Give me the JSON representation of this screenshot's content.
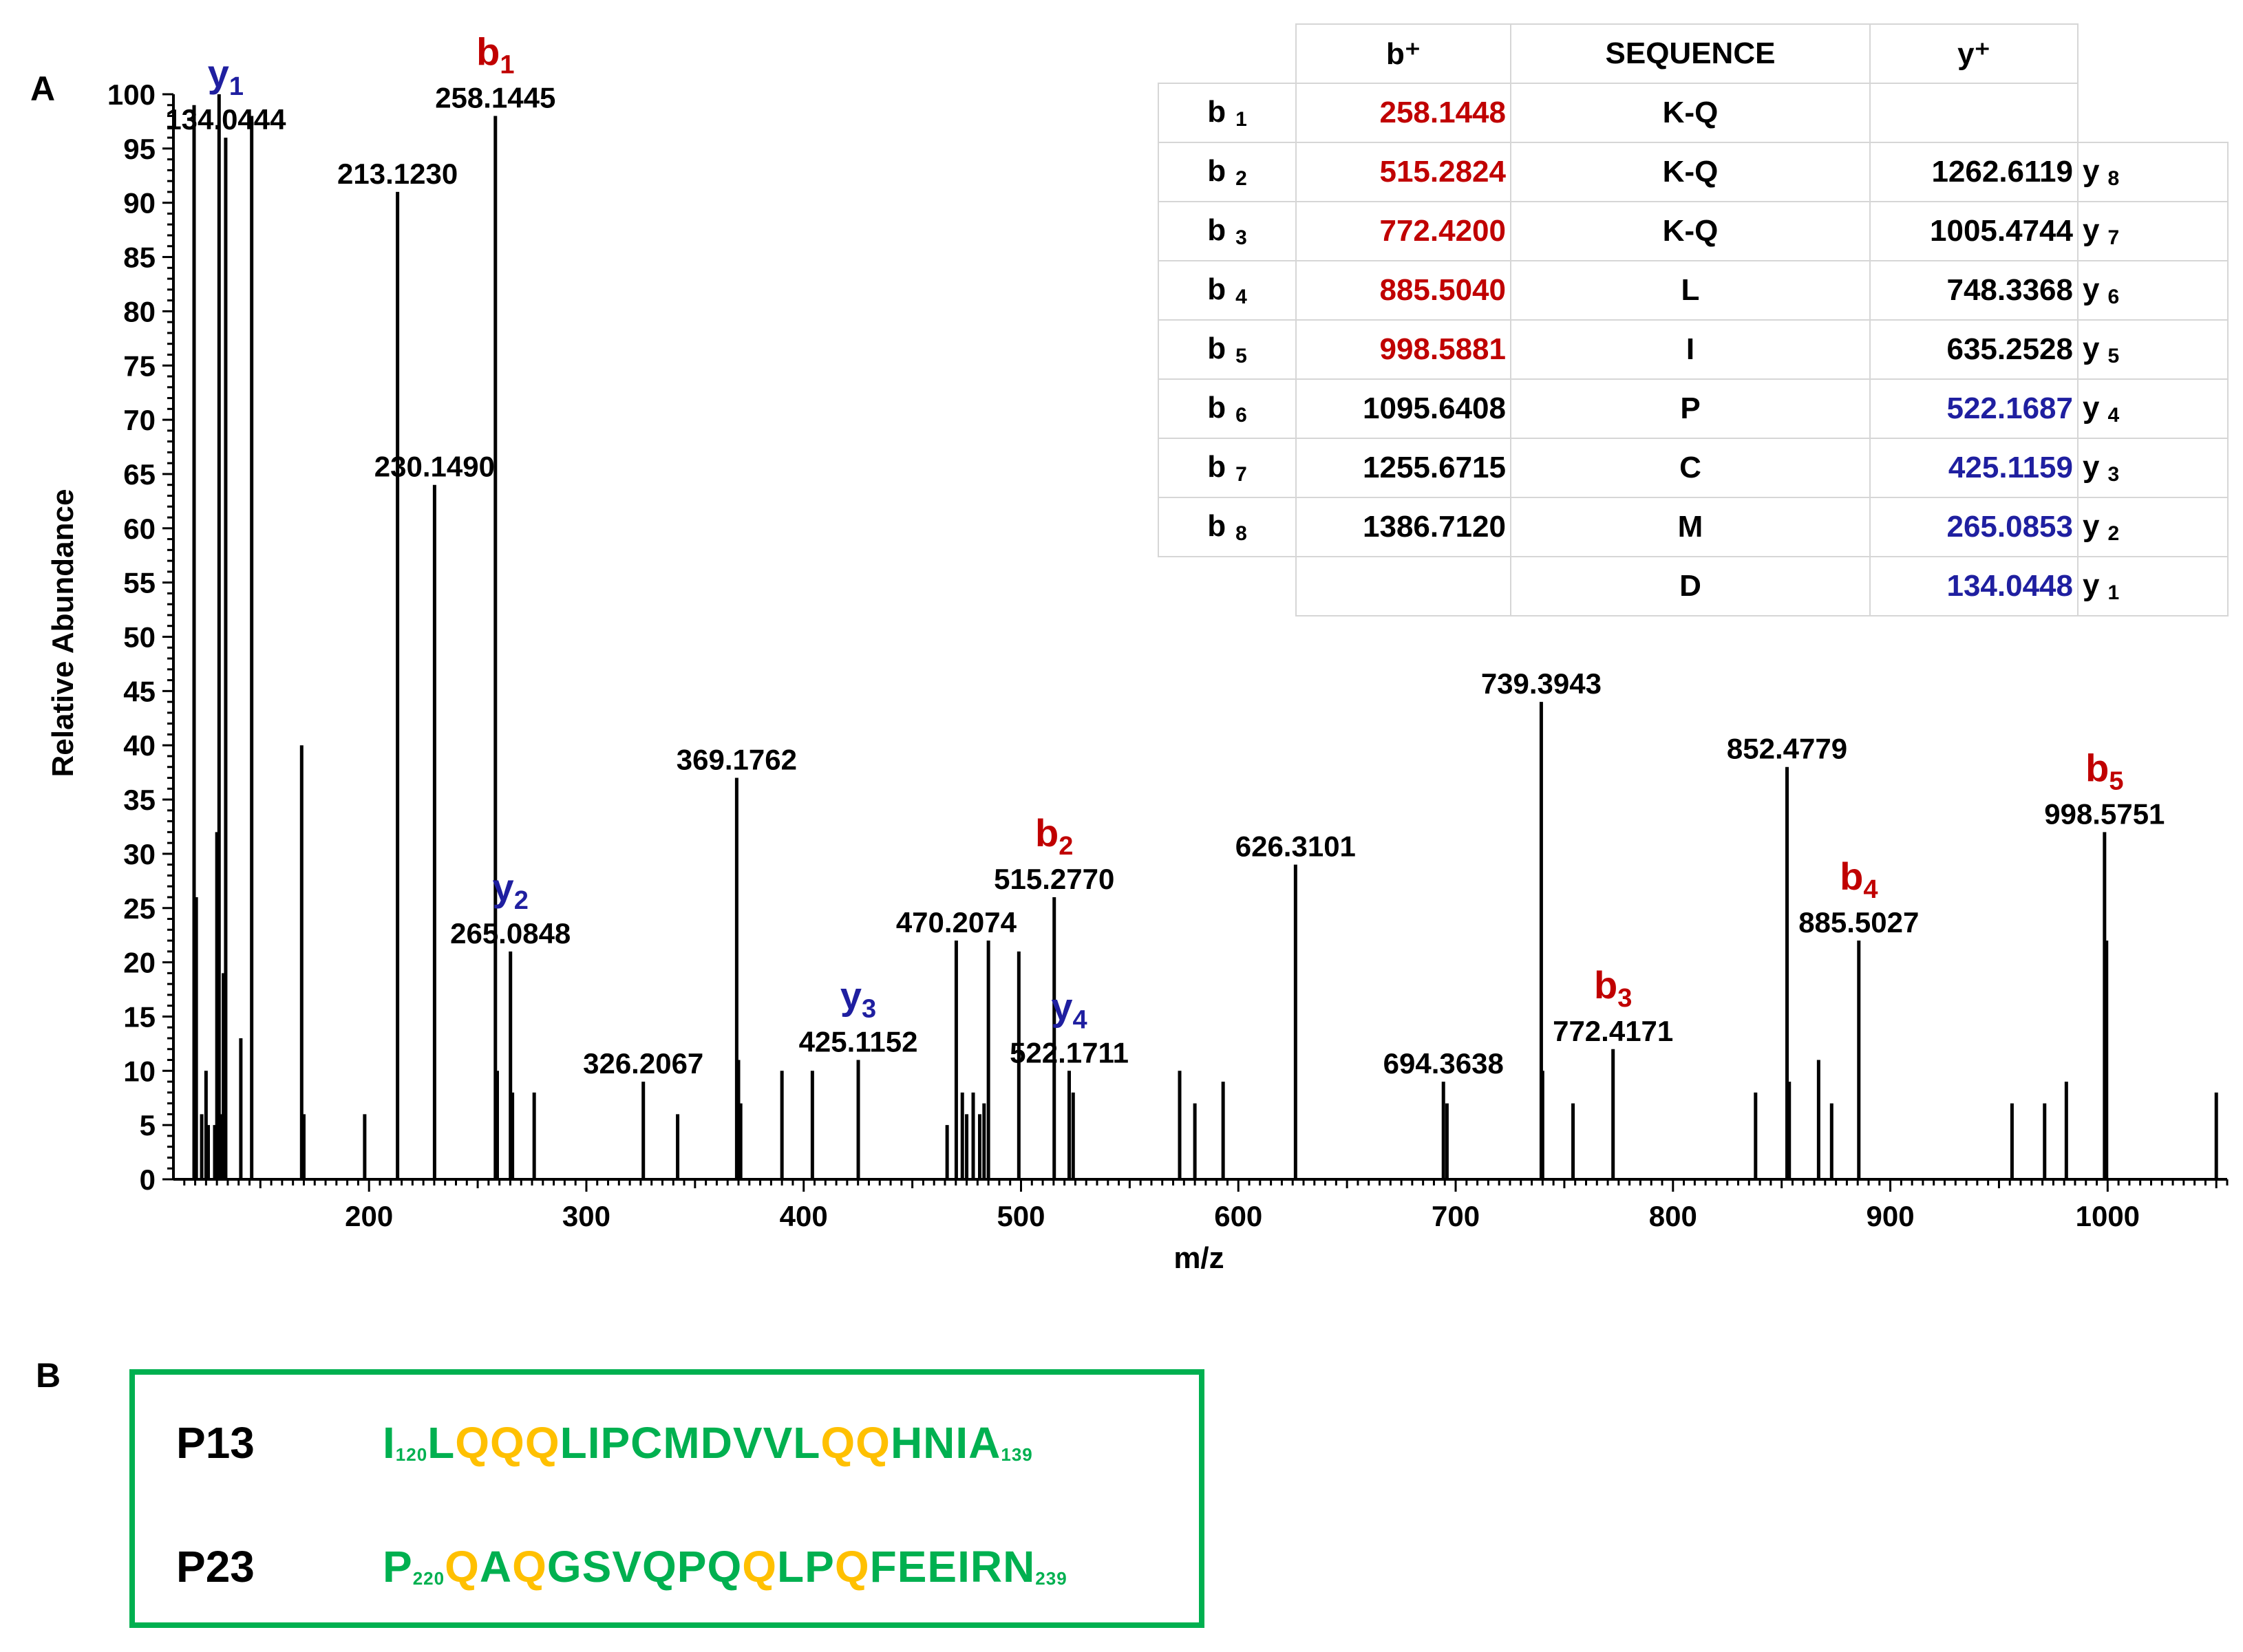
{
  "panel_a_label": "A",
  "panel_b_label": "B",
  "chart_data": {
    "type": "bar",
    "title": "",
    "xlabel": "m/z",
    "ylabel": "Relative Abundance",
    "xlim": [
      110,
      1055
    ],
    "ylim": [
      0,
      100
    ],
    "x_ticks": [
      200,
      300,
      400,
      500,
      600,
      700,
      800,
      900,
      1000
    ],
    "y_ticks": [
      0,
      5,
      10,
      15,
      20,
      25,
      30,
      35,
      40,
      45,
      50,
      55,
      60,
      65,
      70,
      75,
      80,
      85,
      90,
      95,
      100
    ],
    "peaks": [
      {
        "mz": 119.5,
        "intensity": 99
      },
      {
        "mz": 120.5,
        "intensity": 26
      },
      {
        "mz": 123,
        "intensity": 6
      },
      {
        "mz": 125,
        "intensity": 10
      },
      {
        "mz": 126,
        "intensity": 5
      },
      {
        "mz": 129,
        "intensity": 5
      },
      {
        "mz": 130,
        "intensity": 32
      },
      {
        "mz": 131,
        "intensity": 100
      },
      {
        "mz": 132,
        "intensity": 6
      },
      {
        "mz": 133,
        "intensity": 19
      },
      {
        "mz": 134.0444,
        "intensity": 96
      },
      {
        "mz": 141,
        "intensity": 13
      },
      {
        "mz": 146,
        "intensity": 98
      },
      {
        "mz": 169,
        "intensity": 40
      },
      {
        "mz": 170,
        "intensity": 6
      },
      {
        "mz": 198,
        "intensity": 6
      },
      {
        "mz": 213.123,
        "intensity": 91
      },
      {
        "mz": 230.149,
        "intensity": 64
      },
      {
        "mz": 258.1445,
        "intensity": 98
      },
      {
        "mz": 259,
        "intensity": 10
      },
      {
        "mz": 265.0848,
        "intensity": 21
      },
      {
        "mz": 266,
        "intensity": 8
      },
      {
        "mz": 276,
        "intensity": 8
      },
      {
        "mz": 326.2067,
        "intensity": 9
      },
      {
        "mz": 342,
        "intensity": 6
      },
      {
        "mz": 369.1762,
        "intensity": 37
      },
      {
        "mz": 370,
        "intensity": 11
      },
      {
        "mz": 371,
        "intensity": 7
      },
      {
        "mz": 390,
        "intensity": 10
      },
      {
        "mz": 404,
        "intensity": 10
      },
      {
        "mz": 425.1152,
        "intensity": 11
      },
      {
        "mz": 466,
        "intensity": 5
      },
      {
        "mz": 470.2074,
        "intensity": 22
      },
      {
        "mz": 473,
        "intensity": 8
      },
      {
        "mz": 475,
        "intensity": 6
      },
      {
        "mz": 478,
        "intensity": 8
      },
      {
        "mz": 481,
        "intensity": 6
      },
      {
        "mz": 483,
        "intensity": 7
      },
      {
        "mz": 485,
        "intensity": 22
      },
      {
        "mz": 499,
        "intensity": 21
      },
      {
        "mz": 515.277,
        "intensity": 26
      },
      {
        "mz": 522.1711,
        "intensity": 10
      },
      {
        "mz": 524,
        "intensity": 8
      },
      {
        "mz": 573,
        "intensity": 10
      },
      {
        "mz": 580,
        "intensity": 7
      },
      {
        "mz": 593,
        "intensity": 9
      },
      {
        "mz": 626.3101,
        "intensity": 29
      },
      {
        "mz": 694.3638,
        "intensity": 9
      },
      {
        "mz": 696,
        "intensity": 7
      },
      {
        "mz": 739.3943,
        "intensity": 44
      },
      {
        "mz": 740,
        "intensity": 10
      },
      {
        "mz": 754,
        "intensity": 7
      },
      {
        "mz": 772.4171,
        "intensity": 12
      },
      {
        "mz": 838,
        "intensity": 8
      },
      {
        "mz": 852.4779,
        "intensity": 38
      },
      {
        "mz": 853.5,
        "intensity": 9
      },
      {
        "mz": 867,
        "intensity": 11
      },
      {
        "mz": 873,
        "intensity": 7
      },
      {
        "mz": 885.5027,
        "intensity": 22
      },
      {
        "mz": 956,
        "intensity": 7
      },
      {
        "mz": 971,
        "intensity": 7
      },
      {
        "mz": 981,
        "intensity": 9
      },
      {
        "mz": 998.5751,
        "intensity": 32
      },
      {
        "mz": 999.5,
        "intensity": 22
      },
      {
        "mz": 1050,
        "intensity": 8
      }
    ],
    "peak_labels": [
      {
        "mz": 134.0444,
        "intensity": 96,
        "text": "134.0444",
        "ion": "y",
        "ion_sub": "1",
        "ion_color": "blue"
      },
      {
        "mz": 213.123,
        "intensity": 91,
        "text": "213.1230"
      },
      {
        "mz": 258.1445,
        "intensity": 98,
        "text": "258.1445",
        "ion": "b",
        "ion_sub": "1",
        "ion_color": "red"
      },
      {
        "mz": 230.149,
        "intensity": 64,
        "text": "230.1490"
      },
      {
        "mz": 265.0848,
        "intensity": 21,
        "text": "265.0848",
        "ion": "y",
        "ion_sub": "2",
        "ion_color": "blue"
      },
      {
        "mz": 326.2067,
        "intensity": 9,
        "text": "326.2067"
      },
      {
        "mz": 369.1762,
        "intensity": 37,
        "text": "369.1762"
      },
      {
        "mz": 425.1152,
        "intensity": 11,
        "text": "425.1152",
        "ion": "y",
        "ion_sub": "3",
        "ion_color": "blue"
      },
      {
        "mz": 470.2074,
        "intensity": 22,
        "text": "470.2074"
      },
      {
        "mz": 515.277,
        "intensity": 26,
        "text": "515.2770",
        "ion": "b",
        "ion_sub": "2",
        "ion_color": "red"
      },
      {
        "mz": 522.1711,
        "intensity": 10,
        "text": "522.1711",
        "ion": "y",
        "ion_sub": "4",
        "ion_color": "blue"
      },
      {
        "mz": 626.3101,
        "intensity": 29,
        "text": "626.3101"
      },
      {
        "mz": 694.3638,
        "intensity": 9,
        "text": "694.3638"
      },
      {
        "mz": 739.3943,
        "intensity": 44,
        "text": "739.3943"
      },
      {
        "mz": 772.4171,
        "intensity": 12,
        "text": "772.4171",
        "ion": "b",
        "ion_sub": "3",
        "ion_color": "red"
      },
      {
        "mz": 852.4779,
        "intensity": 38,
        "text": "852.4779"
      },
      {
        "mz": 885.5027,
        "intensity": 22,
        "text": "885.5027",
        "ion": "b",
        "ion_sub": "4",
        "ion_color": "red"
      },
      {
        "mz": 998.5751,
        "intensity": 32,
        "text": "998.5751",
        "ion": "b",
        "ion_sub": "5",
        "ion_color": "red"
      }
    ],
    "fragment_table": {
      "headers": {
        "b": "b⁺",
        "sequence": "SEQUENCE",
        "y": "y⁺"
      },
      "rows": [
        {
          "b_label": "b",
          "b_index": "1",
          "b_value": "258.1448",
          "b_color": "red",
          "residue": "K-Q",
          "y_value": "",
          "y_color": "",
          "y_label": "",
          "y_index": ""
        },
        {
          "b_label": "b",
          "b_index": "2",
          "b_value": "515.2824",
          "b_color": "red",
          "residue": "K-Q",
          "y_value": "1262.6119",
          "y_color": "black",
          "y_label": "y",
          "y_index": "8"
        },
        {
          "b_label": "b",
          "b_index": "3",
          "b_value": "772.4200",
          "b_color": "red",
          "residue": "K-Q",
          "y_value": "1005.4744",
          "y_color": "black",
          "y_label": "y",
          "y_index": "7"
        },
        {
          "b_label": "b",
          "b_index": "4",
          "b_value": "885.5040",
          "b_color": "red",
          "residue": "L",
          "y_value": "748.3368",
          "y_color": "black",
          "y_label": "y",
          "y_index": "6"
        },
        {
          "b_label": "b",
          "b_index": "5",
          "b_value": "998.5881",
          "b_color": "red",
          "residue": "I",
          "y_value": "635.2528",
          "y_color": "black",
          "y_label": "y",
          "y_index": "5"
        },
        {
          "b_label": "b",
          "b_index": "6",
          "b_value": "1095.6408",
          "b_color": "black",
          "residue": "P",
          "y_value": "522.1687",
          "y_color": "blue",
          "y_label": "y",
          "y_index": "4"
        },
        {
          "b_label": "b",
          "b_index": "7",
          "b_value": "1255.6715",
          "b_color": "black",
          "residue": "C",
          "y_value": "425.1159",
          "y_color": "blue",
          "y_label": "y",
          "y_index": "3"
        },
        {
          "b_label": "b",
          "b_index": "8",
          "b_value": "1386.7120",
          "b_color": "black",
          "residue": "M",
          "y_value": "265.0853",
          "y_color": "blue",
          "y_label": "y",
          "y_index": "2"
        },
        {
          "b_label": "",
          "b_index": "",
          "b_value": "",
          "b_color": "",
          "residue": "D",
          "y_value": "134.0448",
          "y_color": "blue",
          "y_label": "y",
          "y_index": "1"
        }
      ]
    }
  },
  "peptides": [
    {
      "name": "P13",
      "start_index": "120",
      "end_index": "139",
      "segments": [
        {
          "text": "I",
          "color": "green"
        },
        {
          "text": "LQQQLIPCMDVVLQQHNIA",
          "colors": "gooogggggggggooggggg"
        }
      ]
    },
    {
      "name": "P23",
      "start_index": "220",
      "end_index": "239",
      "segments": [
        {
          "text": "P",
          "color": "green"
        },
        {
          "text": "QAQGSVQPQQLPQFEEIRN",
          "colors": "ogoggggggoggogggggg"
        }
      ]
    }
  ],
  "colors": {
    "red": "#c00000",
    "blue": "#1f1fa0",
    "green": "#00b050",
    "orange": "#ffc000",
    "black": "#000000"
  }
}
